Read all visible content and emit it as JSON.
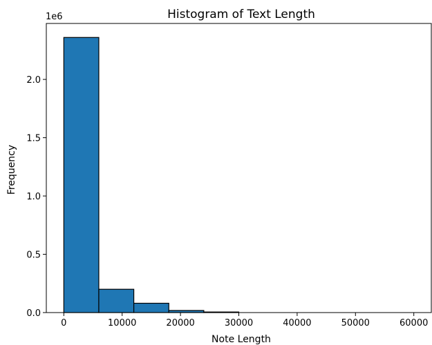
{
  "chart_data": {
    "type": "histogram",
    "title": "Histogram of Text Length",
    "xlabel": "Note Length",
    "ylabel": "Frequency",
    "y_offset_label": "1e6",
    "xlim": [
      -3000,
      63000
    ],
    "ylim": [
      0,
      2.48
    ],
    "x_ticks": [
      0,
      10000,
      20000,
      30000,
      40000,
      50000,
      60000
    ],
    "x_tick_labels": [
      "0",
      "10000",
      "20000",
      "30000",
      "40000",
      "50000",
      "60000"
    ],
    "y_ticks": [
      0,
      0.5,
      1.0,
      1.5,
      2.0
    ],
    "y_tick_labels": [
      "0.0",
      "0.5",
      "1.0",
      "1.5",
      "2.0"
    ],
    "bin_width": 6000,
    "bins": [
      {
        "start": 0,
        "end": 6000,
        "value": 2.36
      },
      {
        "start": 6000,
        "end": 12000,
        "value": 0.2
      },
      {
        "start": 12000,
        "end": 18000,
        "value": 0.08
      },
      {
        "start": 18000,
        "end": 24000,
        "value": 0.018
      },
      {
        "start": 24000,
        "end": 30000,
        "value": 0.005
      },
      {
        "start": 30000,
        "end": 36000,
        "value": 0.001
      },
      {
        "start": 36000,
        "end": 42000,
        "value": 0.0003
      },
      {
        "start": 42000,
        "end": 48000,
        "value": 0.0001
      },
      {
        "start": 48000,
        "end": 54000,
        "value": 0.0001
      },
      {
        "start": 54000,
        "end": 60000,
        "value": 0.0001
      }
    ],
    "bar_color": "#1f77b4",
    "edge_color": "#000000",
    "grid": false,
    "legend": "none"
  }
}
